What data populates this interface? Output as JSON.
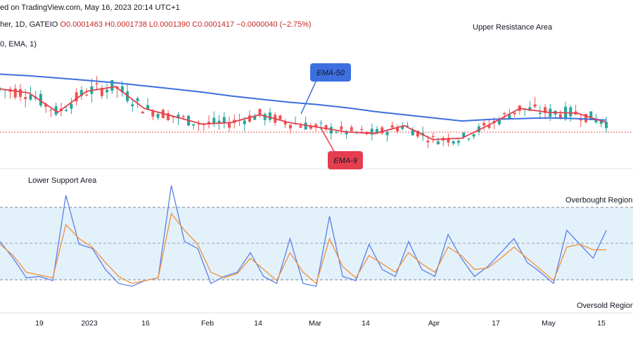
{
  "header": {
    "published": "ed on TradingView.com, May 16, 2023 20:14 UTC+1",
    "symbol": "her, 1D, GATEIO",
    "ohlc": "O0.0001463 H0.0001738 L0.0001390 C0.0001417 −0.0000040 (−2.75%)",
    "indicator": "0, EMA, 1)"
  },
  "annotations": {
    "upper": "Upper Resistance Area",
    "lower": "Lower Support Area",
    "overbought": "Overbought Region",
    "oversold": "Oversold Region",
    "ema50": "EMA-50",
    "ema9": "EMA-9"
  },
  "colors": {
    "up": "#26a69a",
    "down": "#ef5350",
    "ema50": "#3d6fe0",
    "ema9": "#e53f4f",
    "osc_fast": "#5b7fe6",
    "osc_slow": "#f0903a",
    "band": "#e3f1fb",
    "last_price": "#ef5350"
  },
  "chart_data": [
    {
      "type": "candlestick",
      "x_tick_labels": [
        "19",
        "2023",
        "16",
        "Feb",
        "14",
        "Mar",
        "14",
        "Apr",
        "17",
        "May",
        "15"
      ],
      "last_close": 0.0001417,
      "series": [
        {
          "name": "EMA-50",
          "values": [
            0.000214,
            0.000212,
            0.000209,
            0.000206,
            0.000203,
            0.000199,
            0.000195,
            0.000191,
            0.000186,
            0.000182,
            0.000178,
            0.000175,
            0.000171,
            0.000166,
            0.000162,
            0.000158,
            0.000154,
            0.000156,
            0.000157,
            0.000158,
            0.000157,
            0.000155
          ]
        },
        {
          "name": "EMA-9",
          "values": [
            0.000195,
            0.00019,
            0.000165,
            0.000192,
            0.000198,
            0.00017,
            0.00016,
            0.00015,
            0.000152,
            0.000162,
            0.000152,
            0.000146,
            0.00014,
            0.000138,
            0.000148,
            0.00013,
            0.000132,
            0.00015,
            0.00017,
            0.000165,
            0.000164,
            0.000152
          ]
        }
      ]
    },
    {
      "type": "line",
      "subtype": "oscillator",
      "overbought_level": 80,
      "oversold_level": 20,
      "mid_level": 50,
      "ylim": [
        0,
        100
      ],
      "x_tick_labels": [
        "19",
        "2023",
        "16",
        "Feb",
        "14",
        "Mar",
        "14",
        "Apr",
        "17",
        "May",
        "15"
      ],
      "series": [
        {
          "name": "fast",
          "values": [
            50,
            38,
            24,
            25,
            22,
            83,
            48,
            45,
            30,
            20,
            18,
            22,
            24,
            90,
            50,
            45,
            20,
            25,
            28,
            42,
            25,
            20,
            52,
            20,
            18,
            68,
            25,
            22,
            48,
            30,
            25,
            50,
            30,
            25,
            55,
            38,
            25,
            32,
            42,
            52,
            35,
            28,
            20,
            58,
            48,
            38,
            58
          ]
        },
        {
          "name": "slow",
          "values": [
            48,
            40,
            28,
            26,
            24,
            62,
            52,
            46,
            35,
            25,
            20,
            22,
            24,
            70,
            58,
            48,
            28,
            24,
            27,
            38,
            30,
            22,
            42,
            28,
            20,
            52,
            32,
            24,
            40,
            34,
            28,
            42,
            34,
            28,
            46,
            40,
            30,
            31,
            38,
            46,
            38,
            30,
            22,
            46,
            48,
            44,
            44
          ]
        }
      ]
    }
  ]
}
